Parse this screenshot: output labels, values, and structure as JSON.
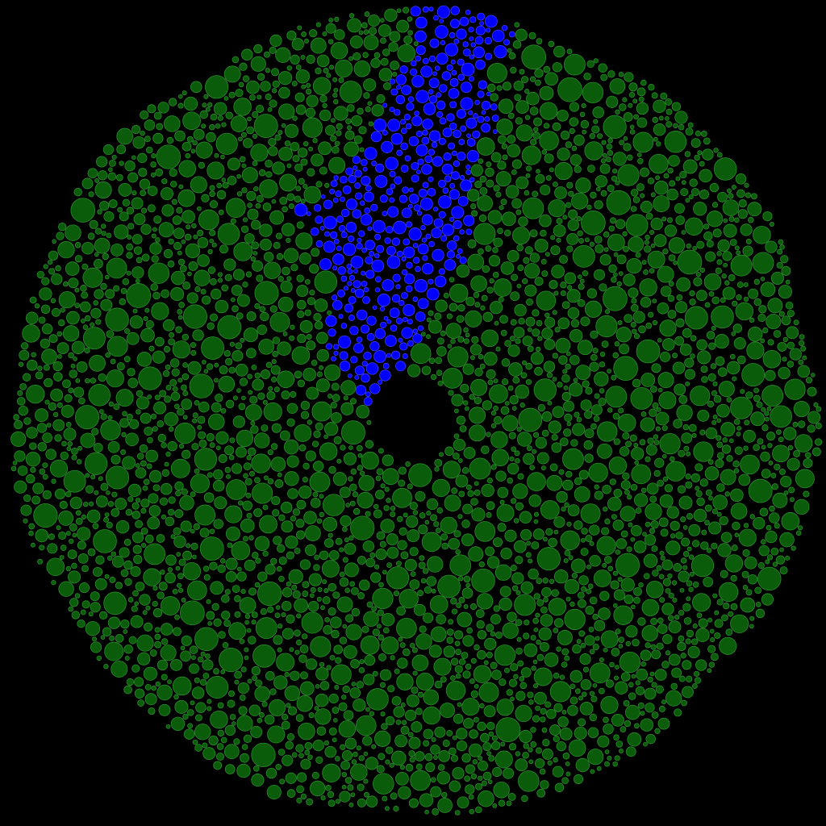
{
  "diagram": {
    "type": "circle-packing",
    "shape": "disc",
    "background_color": "#000000",
    "circle_fill_default": "#0a5c0a",
    "circle_stroke_default": "#2a8a2a",
    "circle_fill_highlight": "#0000ff",
    "circle_stroke_highlight": "#3a3aff",
    "regions": [
      {
        "name": "highlighted-cluster",
        "color": "#0000ff"
      },
      {
        "name": "main-cluster",
        "color": "#0a5c0a"
      }
    ],
    "center_hole": true
  }
}
